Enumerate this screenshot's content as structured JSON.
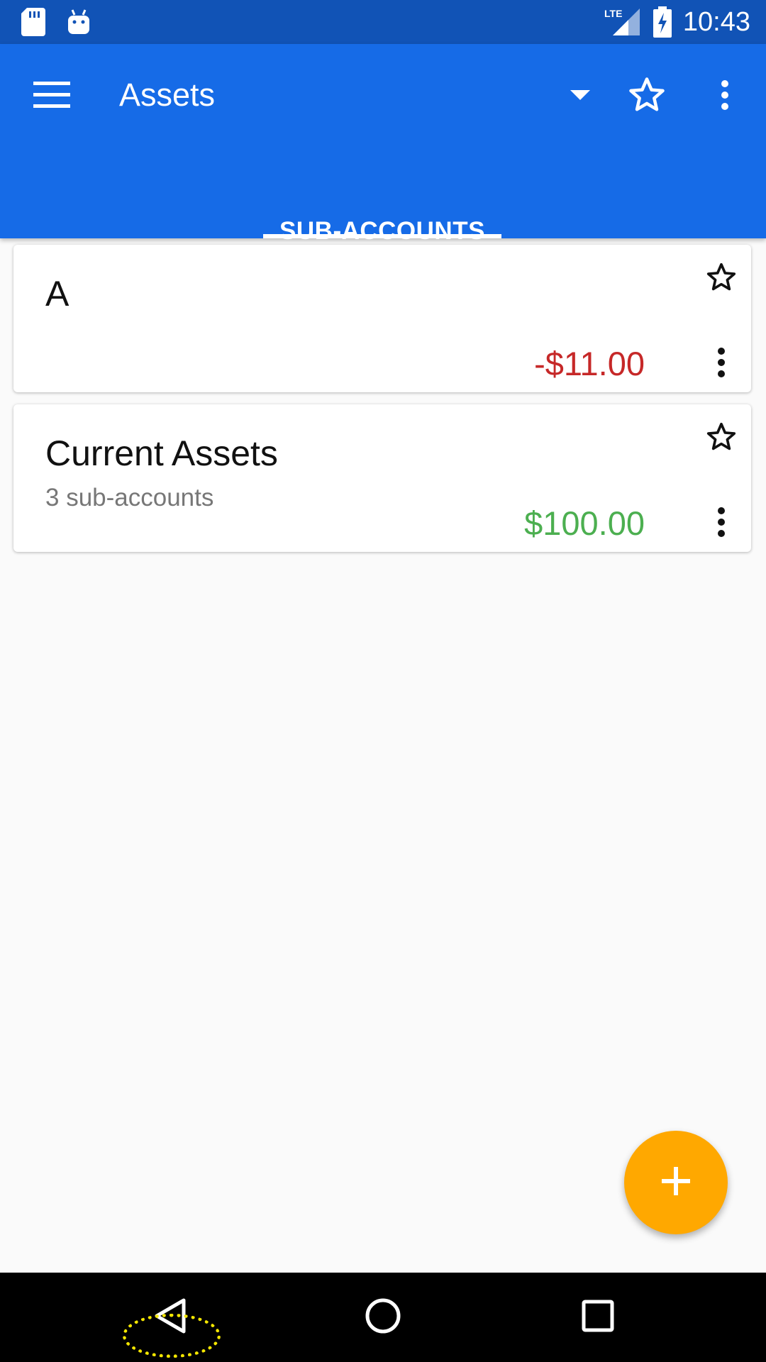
{
  "status_bar": {
    "time": "10:43",
    "network_label": "LTE",
    "icons": [
      "sd-card-icon",
      "android-icon",
      "lte-signal-icon",
      "battery-charging-icon"
    ]
  },
  "app_bar": {
    "title": "Assets",
    "icons": [
      "menu-icon",
      "dropdown-arrow-icon",
      "star-outline-icon",
      "more-vert-icon"
    ]
  },
  "tabs": [
    {
      "label": "SUB-ACCOUNTS",
      "selected": true
    }
  ],
  "accounts": [
    {
      "name": "A",
      "subtitle": "",
      "balance": "-$11.00",
      "balance_color": "#c62828",
      "favorite": false
    },
    {
      "name": "Current Assets",
      "subtitle": "3 sub-accounts",
      "balance": "$100.00",
      "balance_color": "#4caf50",
      "favorite": false
    }
  ],
  "fab": {
    "icon": "plus-icon",
    "color": "#ffa800"
  },
  "nav_bar": {
    "icons": [
      "back-icon",
      "home-icon",
      "recents-icon"
    ]
  },
  "colors": {
    "status_bar": "#1153b6",
    "app_bar": "#166be7",
    "background": "#fafafa",
    "highlight": "#f4e600"
  }
}
